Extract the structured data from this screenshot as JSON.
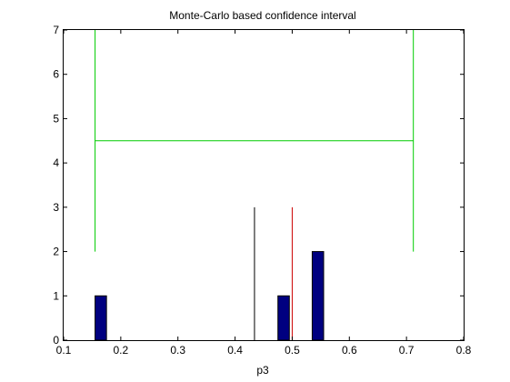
{
  "chart_data": {
    "type": "bar",
    "title": "Monte-Carlo based confidence interval",
    "xlabel": "p3",
    "ylabel": "",
    "xlim": [
      0.1,
      0.8
    ],
    "ylim": [
      0,
      7
    ],
    "grid": false,
    "x_ticks": [
      "0.1",
      "0.2",
      "0.3",
      "0.4",
      "0.5",
      "0.6",
      "0.7",
      "0.8"
    ],
    "y_ticks": [
      "0",
      "1",
      "2",
      "3",
      "4",
      "5",
      "6",
      "7"
    ],
    "bin_width": 0.02,
    "histogram": {
      "x": [
        0.165,
        0.485,
        0.545
      ],
      "values": [
        1,
        1,
        2
      ],
      "color": "#000080"
    },
    "vertical_lines": [
      {
        "x": 0.434,
        "y_range": [
          0,
          3
        ],
        "color": "#000000"
      },
      {
        "x": 0.5,
        "y_range": [
          0,
          3
        ],
        "color": "#cc0000"
      }
    ],
    "confidence_interval": {
      "lower": 0.155,
      "upper": 0.712,
      "y_level": 4.5,
      "y_range": [
        2,
        7
      ],
      "color": "#00cc00"
    }
  }
}
